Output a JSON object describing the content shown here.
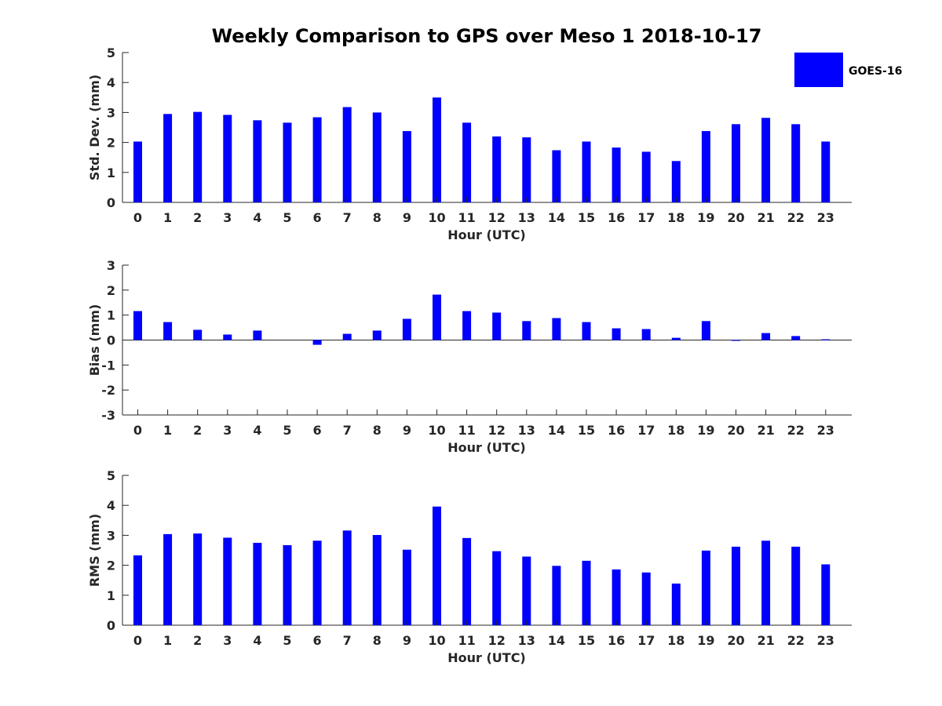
{
  "figure": {
    "title": "Weekly Comparison to GPS over Meso 1 2018-10-17",
    "legend": {
      "label": "GOES-16",
      "color": "#0000ff",
      "position": "top-right"
    }
  },
  "chart_data": [
    {
      "type": "bar",
      "name": "std-dev",
      "ylabel": "Std. Dev. (mm)",
      "xlabel": "Hour (UTC)",
      "categories": [
        "0",
        "1",
        "2",
        "3",
        "4",
        "5",
        "6",
        "7",
        "8",
        "9",
        "10",
        "11",
        "12",
        "13",
        "14",
        "15",
        "16",
        "17",
        "18",
        "19",
        "20",
        "21",
        "22",
        "23"
      ],
      "ylim": [
        0,
        5
      ],
      "yticks": [
        "0",
        "1",
        "2",
        "3",
        "4",
        "5"
      ],
      "series": [
        {
          "name": "GOES-16",
          "color": "#0000ff",
          "values": [
            2.03,
            2.95,
            3.02,
            2.92,
            2.74,
            2.66,
            2.84,
            3.18,
            3.0,
            2.38,
            3.5,
            2.66,
            2.2,
            2.17,
            1.74,
            2.03,
            1.83,
            1.69,
            1.38,
            2.38,
            2.61,
            2.82,
            2.61,
            2.03
          ]
        }
      ]
    },
    {
      "type": "bar",
      "name": "bias",
      "ylabel": "Bias (mm)",
      "xlabel": "Hour (UTC)",
      "categories": [
        "0",
        "1",
        "2",
        "3",
        "4",
        "5",
        "6",
        "7",
        "8",
        "9",
        "10",
        "11",
        "12",
        "13",
        "14",
        "15",
        "16",
        "17",
        "18",
        "19",
        "20",
        "21",
        "22",
        "23"
      ],
      "ylim": [
        -3,
        3
      ],
      "yticks": [
        "-3",
        "-2",
        "-1",
        "0",
        "1",
        "2",
        "3"
      ],
      "series": [
        {
          "name": "GOES-16",
          "color": "#0000ff",
          "values": [
            1.16,
            0.72,
            0.41,
            0.22,
            0.38,
            0.0,
            -0.19,
            0.25,
            0.38,
            0.85,
            1.82,
            1.16,
            1.1,
            0.76,
            0.88,
            0.72,
            0.47,
            0.44,
            0.09,
            0.76,
            -0.03,
            0.28,
            0.16,
            0.03
          ]
        }
      ]
    },
    {
      "type": "bar",
      "name": "rms",
      "ylabel": "RMS (mm)",
      "xlabel": "Hour (UTC)",
      "categories": [
        "0",
        "1",
        "2",
        "3",
        "4",
        "5",
        "6",
        "7",
        "8",
        "9",
        "10",
        "11",
        "12",
        "13",
        "14",
        "15",
        "16",
        "17",
        "18",
        "19",
        "20",
        "21",
        "22",
        "23"
      ],
      "ylim": [
        0,
        5
      ],
      "yticks": [
        "0",
        "1",
        "2",
        "3",
        "4",
        "5"
      ],
      "series": [
        {
          "name": "GOES-16",
          "color": "#0000ff",
          "values": [
            2.33,
            3.04,
            3.06,
            2.92,
            2.75,
            2.67,
            2.82,
            3.16,
            3.01,
            2.52,
            3.96,
            2.91,
            2.47,
            2.29,
            1.98,
            2.15,
            1.86,
            1.76,
            1.39,
            2.49,
            2.62,
            2.82,
            2.62,
            2.03
          ]
        }
      ]
    }
  ]
}
